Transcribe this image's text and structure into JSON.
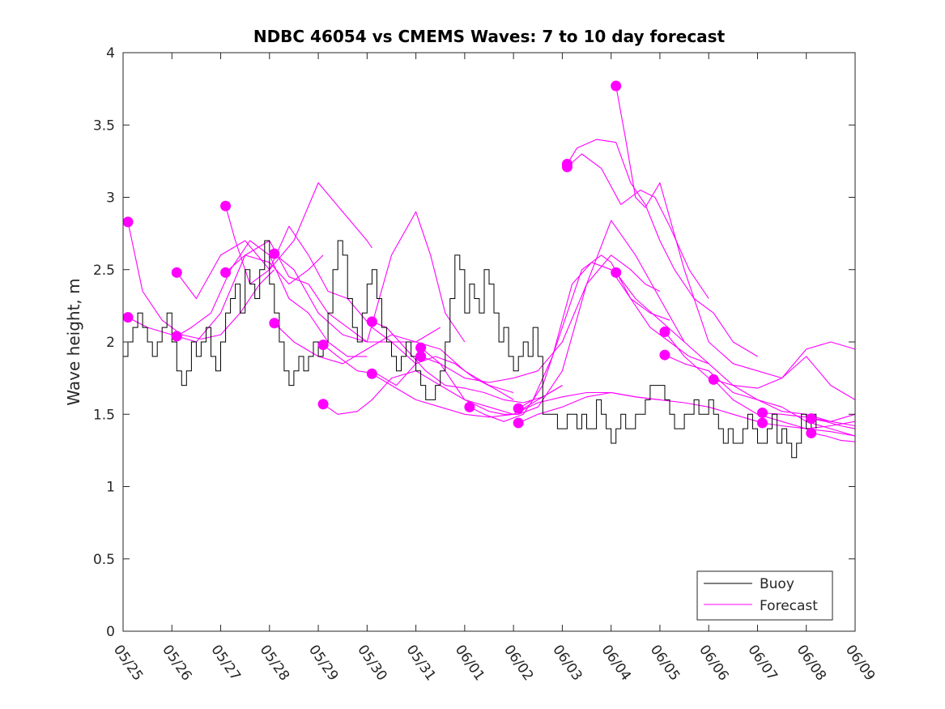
{
  "colors": {
    "buoy": "#000000",
    "forecast": "#ff00ff"
  },
  "chart_data": {
    "type": "line",
    "title": "NDBC 46054 vs CMEMS Waves: 7 to 10 day forecast",
    "xlabel": "",
    "ylabel": "Wave height, m",
    "xlim": [
      0,
      15
    ],
    "ylim": [
      0,
      4
    ],
    "grid": false,
    "legend_placement": "bottom-right",
    "x_tick_labels": [
      "05/25",
      "05/26",
      "05/27",
      "05/28",
      "05/29",
      "05/30",
      "05/31",
      "06/01",
      "06/02",
      "06/03",
      "06/04",
      "06/05",
      "06/06",
      "06/07",
      "06/08",
      "06/09"
    ],
    "y_ticks": [
      0,
      0.5,
      1,
      1.5,
      2,
      2.5,
      3,
      3.5,
      4
    ],
    "y_tick_labels": [
      "0",
      "0.5",
      "1",
      "1.5",
      "2",
      "2.5",
      "3",
      "3.5",
      "4"
    ],
    "legend": [
      "Buoy",
      "Forecast"
    ],
    "buoy": {
      "x": [
        0,
        0.1,
        0.2,
        0.3,
        0.4,
        0.5,
        0.6,
        0.7,
        0.8,
        0.9,
        1.0,
        1.1,
        1.2,
        1.3,
        1.4,
        1.5,
        1.6,
        1.7,
        1.8,
        1.9,
        2.0,
        2.1,
        2.2,
        2.3,
        2.4,
        2.5,
        2.6,
        2.7,
        2.8,
        2.9,
        3.0,
        3.1,
        3.2,
        3.3,
        3.4,
        3.5,
        3.6,
        3.7,
        3.8,
        3.9,
        4.0,
        4.1,
        4.2,
        4.3,
        4.4,
        4.5,
        4.6,
        4.7,
        4.8,
        4.9,
        5.0,
        5.1,
        5.2,
        5.3,
        5.4,
        5.5,
        5.6,
        5.7,
        5.8,
        5.9,
        6.0,
        6.1,
        6.2,
        6.3,
        6.4,
        6.5,
        6.6,
        6.7,
        6.8,
        6.9,
        7.0,
        7.1,
        7.2,
        7.3,
        7.4,
        7.5,
        7.6,
        7.7,
        7.8,
        7.9,
        8.0,
        8.1,
        8.2,
        8.3,
        8.4,
        8.5,
        8.6,
        8.7,
        8.8,
        8.9,
        9.0,
        9.1,
        9.2,
        9.3,
        9.4,
        9.5,
        9.6,
        9.7,
        9.8,
        9.9,
        10.0,
        10.1,
        10.2,
        10.3,
        10.4,
        10.5,
        10.6,
        10.7,
        10.8,
        10.9,
        11.0,
        11.1,
        11.2,
        11.3,
        11.4,
        11.5,
        11.6,
        11.7,
        11.8,
        11.9,
        12.0,
        12.1,
        12.2,
        12.3,
        12.4,
        12.5,
        12.6,
        12.7,
        12.8,
        12.9,
        13.0,
        13.1,
        13.2,
        13.3,
        13.4,
        13.5,
        13.6,
        13.7,
        13.8,
        13.9,
        14.0,
        14.1,
        14.2
      ],
      "y": [
        1.9,
        2.0,
        2.1,
        2.2,
        2.1,
        2.0,
        1.9,
        2.0,
        2.1,
        2.2,
        2.0,
        1.8,
        1.7,
        1.8,
        2.0,
        1.9,
        2.0,
        2.1,
        1.9,
        1.8,
        2.0,
        2.2,
        2.3,
        2.4,
        2.2,
        2.5,
        2.4,
        2.3,
        2.5,
        2.7,
        2.4,
        2.2,
        2.0,
        1.8,
        1.7,
        1.8,
        1.9,
        1.8,
        1.9,
        2.0,
        1.9,
        2.0,
        2.2,
        2.5,
        2.7,
        2.6,
        2.3,
        2.1,
        2.0,
        2.2,
        2.4,
        2.5,
        2.3,
        2.1,
        2.0,
        1.9,
        1.8,
        1.9,
        2.0,
        1.9,
        1.8,
        1.7,
        1.6,
        1.6,
        1.7,
        1.8,
        2.0,
        2.3,
        2.6,
        2.5,
        2.2,
        2.4,
        2.3,
        2.2,
        2.5,
        2.4,
        2.2,
        2.0,
        2.1,
        1.9,
        1.8,
        1.9,
        2.0,
        1.9,
        2.1,
        1.9,
        1.5,
        1.5,
        1.5,
        1.4,
        1.4,
        1.5,
        1.5,
        1.4,
        1.5,
        1.4,
        1.4,
        1.6,
        1.5,
        1.4,
        1.3,
        1.4,
        1.5,
        1.4,
        1.4,
        1.5,
        1.5,
        1.6,
        1.7,
        1.7,
        1.7,
        1.6,
        1.5,
        1.4,
        1.4,
        1.5,
        1.5,
        1.6,
        1.5,
        1.5,
        1.6,
        1.5,
        1.4,
        1.3,
        1.4,
        1.3,
        1.3,
        1.4,
        1.5,
        1.4,
        1.3,
        1.3,
        1.4,
        1.5,
        1.3,
        1.4,
        1.3,
        1.2,
        1.3,
        1.5,
        1.4,
        1.5,
        1.4
      ]
    },
    "forecast_series": [
      {
        "x": [
          0.1,
          0.4,
          0.8,
          1.2,
          1.6,
          2.0,
          2.4,
          2.8,
          3.1
        ],
        "y": [
          2.83,
          2.35,
          2.15,
          2.05,
          2.02,
          2.05,
          2.2,
          2.4,
          2.5
        ]
      },
      {
        "x": [
          0.1,
          0.5,
          1.0,
          1.5,
          2.0,
          2.5,
          3.0,
          3.4,
          3.8,
          4.1
        ],
        "y": [
          2.17,
          2.1,
          2.05,
          2.0,
          2.2,
          2.6,
          2.55,
          2.4,
          2.5,
          2.6
        ]
      },
      {
        "x": [
          1.1,
          1.5,
          2.0,
          2.5,
          3.0,
          3.5,
          4.0,
          4.5,
          5.0,
          5.1
        ],
        "y": [
          2.48,
          2.3,
          2.6,
          2.7,
          2.5,
          2.7,
          3.1,
          2.9,
          2.7,
          2.65
        ]
      },
      {
        "x": [
          1.1,
          1.4,
          1.8,
          2.2,
          2.6,
          3.0,
          3.4,
          3.8,
          4.2,
          4.6,
          5.0
        ],
        "y": [
          2.04,
          2.1,
          2.2,
          2.5,
          2.7,
          2.6,
          2.3,
          2.2,
          2.0,
          1.9,
          1.9
        ]
      },
      {
        "x": [
          2.1,
          2.3,
          2.6,
          3.0,
          3.4,
          3.8,
          4.2,
          4.6,
          5.1,
          5.5,
          6.0
        ],
        "y": [
          2.94,
          2.7,
          2.4,
          2.5,
          2.8,
          2.6,
          2.35,
          2.3,
          2.1,
          2.0,
          1.85
        ]
      },
      {
        "x": [
          2.1,
          2.5,
          3.0,
          3.4,
          3.8,
          4.2,
          4.6,
          5.0,
          5.5,
          6.0,
          6.5
        ],
        "y": [
          2.48,
          2.6,
          2.7,
          2.45,
          2.4,
          2.2,
          2.1,
          2.0,
          2.0,
          2.0,
          2.1
        ]
      },
      {
        "x": [
          3.1,
          3.5,
          4.0,
          4.5,
          5.0,
          5.5,
          6.0,
          6.3,
          6.6,
          7.0
        ],
        "y": [
          2.61,
          2.5,
          2.2,
          2.05,
          2.0,
          2.6,
          2.9,
          2.6,
          2.2,
          2.0
        ]
      },
      {
        "x": [
          3.1,
          3.5,
          4.0,
          4.5,
          5.0,
          5.5,
          6.0,
          6.5,
          7.0,
          7.5,
          8.0
        ],
        "y": [
          2.13,
          2.0,
          1.9,
          1.85,
          1.95,
          2.05,
          2.0,
          1.95,
          1.8,
          1.7,
          1.65
        ]
      },
      {
        "x": [
          4.1,
          4.4,
          4.8,
          5.2,
          5.6,
          6.0,
          6.4,
          6.8,
          7.2,
          7.6,
          8.0
        ],
        "y": [
          1.98,
          1.9,
          1.8,
          1.78,
          1.7,
          1.85,
          1.9,
          1.85,
          1.75,
          1.68,
          1.6
        ]
      },
      {
        "x": [
          4.1,
          4.4,
          4.8,
          5.1,
          5.5,
          6.0,
          6.5,
          7.0,
          7.5,
          8.0,
          8.5,
          9.0
        ],
        "y": [
          1.57,
          1.5,
          1.52,
          1.6,
          1.75,
          1.8,
          1.7,
          1.6,
          1.55,
          1.5,
          1.6,
          1.7
        ]
      },
      {
        "x": [
          5.1,
          5.4,
          5.8,
          6.2,
          6.6,
          7.0,
          7.4,
          7.8,
          8.2,
          8.6,
          9.0
        ],
        "y": [
          2.14,
          2.1,
          1.95,
          1.8,
          1.7,
          1.68,
          1.65,
          1.6,
          1.58,
          1.62,
          1.7
        ]
      },
      {
        "x": [
          5.1,
          5.5,
          6.0,
          6.5,
          7.0,
          7.5,
          8.0,
          8.5,
          9.0,
          9.5,
          10.0,
          10.5,
          11.0
        ],
        "y": [
          1.78,
          1.7,
          1.6,
          1.55,
          1.5,
          1.48,
          1.5,
          1.58,
          1.62,
          1.65,
          1.65,
          1.62,
          1.6
        ]
      },
      {
        "x": [
          6.1,
          6.5,
          7.0,
          7.5,
          7.8,
          8.1,
          8.5,
          9.0,
          9.5,
          10.0,
          10.5,
          11.0,
          11.5
        ],
        "y": [
          1.96,
          1.85,
          1.6,
          1.52,
          1.5,
          1.5,
          1.55,
          1.8,
          2.4,
          2.84,
          2.6,
          2.3,
          2.0
        ]
      },
      {
        "x": [
          6.1,
          6.5,
          7.0,
          7.5,
          8.0,
          8.5,
          9.0,
          9.5,
          10.0,
          10.4,
          10.7,
          11.0
        ],
        "y": [
          1.9,
          1.85,
          1.75,
          1.72,
          1.75,
          1.8,
          2.0,
          2.4,
          2.6,
          2.5,
          2.4,
          2.35
        ]
      },
      {
        "x": [
          7.1,
          7.4,
          7.8,
          8.2,
          8.6,
          9.0,
          9.4,
          9.8,
          10.0,
          10.4,
          10.8,
          11.2
        ],
        "y": [
          1.55,
          1.5,
          1.45,
          1.5,
          1.7,
          2.1,
          2.5,
          2.6,
          2.55,
          2.3,
          2.2,
          2.15
        ]
      },
      {
        "x": [
          8.1,
          8.4,
          8.8,
          9.2,
          9.6,
          10.0,
          10.4,
          10.8,
          11.2,
          11.6,
          12.0
        ],
        "y": [
          1.54,
          1.6,
          1.9,
          2.4,
          2.55,
          2.5,
          2.3,
          2.1,
          2.0,
          1.9,
          1.85
        ]
      },
      {
        "x": [
          8.1,
          8.5,
          9.0,
          9.5,
          10.0,
          10.5,
          11.0,
          11.5,
          12.0,
          12.5,
          13.0
        ],
        "y": [
          1.44,
          1.5,
          1.55,
          1.62,
          1.65,
          1.62,
          1.6,
          1.58,
          1.55,
          1.5,
          1.45
        ]
      },
      {
        "x": [
          9.1,
          9.3,
          9.7,
          10.1,
          10.4,
          10.7,
          11.0,
          11.3,
          11.7,
          12.1,
          12.5,
          13.0
        ],
        "y": [
          3.23,
          3.34,
          3.4,
          3.38,
          3.1,
          2.95,
          2.7,
          2.5,
          2.3,
          2.2,
          2.0,
          1.9
        ]
      },
      {
        "x": [
          9.1,
          9.4,
          9.8,
          10.2,
          10.6,
          10.9,
          11.2,
          11.6,
          12.0
        ],
        "y": [
          3.21,
          3.3,
          3.2,
          2.95,
          3.05,
          3.0,
          2.8,
          2.5,
          2.3
        ]
      },
      {
        "x": [
          10.1,
          10.3,
          10.5,
          10.7,
          11.0,
          11.5,
          12.0,
          12.5,
          13.0,
          13.5,
          14.0,
          14.5,
          15.0
        ],
        "y": [
          3.77,
          3.4,
          3.0,
          2.93,
          3.1,
          2.5,
          2.0,
          1.85,
          1.8,
          1.75,
          1.95,
          2.0,
          1.95
        ]
      },
      {
        "x": [
          10.1,
          10.5,
          11.0,
          11.5,
          12.0,
          12.5,
          13.0,
          13.5,
          14.0,
          14.5,
          15.0
        ],
        "y": [
          2.48,
          2.3,
          2.15,
          2.0,
          1.85,
          1.7,
          1.6,
          1.55,
          1.45,
          1.4,
          1.35
        ]
      },
      {
        "x": [
          11.1,
          11.5,
          12.0,
          12.5,
          13.0,
          13.5,
          14.0,
          14.5,
          15.0
        ],
        "y": [
          2.07,
          1.9,
          1.75,
          1.7,
          1.68,
          1.75,
          1.9,
          1.7,
          1.6
        ]
      },
      {
        "x": [
          11.1,
          11.5,
          12.0,
          12.5,
          13.0,
          13.5,
          14.0,
          14.5,
          15.0
        ],
        "y": [
          1.91,
          1.85,
          1.8,
          1.65,
          1.6,
          1.52,
          1.5,
          1.45,
          1.42
        ]
      },
      {
        "x": [
          12.1,
          12.5,
          13.0,
          13.5,
          14.0,
          14.5,
          15.0
        ],
        "y": [
          1.74,
          1.6,
          1.5,
          1.45,
          1.4,
          1.42,
          1.45
        ]
      },
      {
        "x": [
          13.1,
          13.5,
          14.0,
          14.5,
          15.0
        ],
        "y": [
          1.51,
          1.5,
          1.48,
          1.45,
          1.5
        ]
      },
      {
        "x": [
          13.1,
          13.5,
          14.0,
          14.5,
          15.0
        ],
        "y": [
          1.44,
          1.42,
          1.4,
          1.38,
          1.35
        ]
      },
      {
        "x": [
          14.1,
          14.4,
          14.7,
          15.0
        ],
        "y": [
          1.47,
          1.45,
          1.42,
          1.4
        ]
      },
      {
        "x": [
          14.1,
          14.4,
          14.7,
          15.0
        ],
        "y": [
          1.37,
          1.35,
          1.32,
          1.31
        ]
      }
    ]
  }
}
